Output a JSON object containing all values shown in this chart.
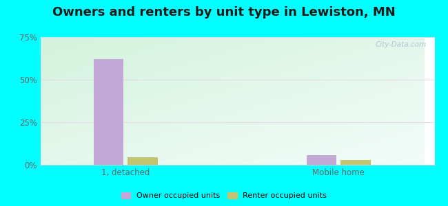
{
  "title": "Owners and renters by unit type in Lewiston, MN",
  "categories": [
    "1, detached",
    "Mobile home"
  ],
  "owner_values": [
    62.0,
    5.5
  ],
  "renter_values": [
    4.5,
    3.0
  ],
  "owner_color": "#c3a8d5",
  "renter_color": "#c2c472",
  "ylim": [
    0,
    75
  ],
  "yticks": [
    0,
    25,
    50,
    75
  ],
  "yticklabels": [
    "0%",
    "25%",
    "50%",
    "75%"
  ],
  "bar_width": 0.28,
  "outer_background": "#00ffff",
  "title_fontsize": 13,
  "watermark": "City-Data.com",
  "legend_owner": "Owner occupied units",
  "legend_renter": "Renter occupied units"
}
